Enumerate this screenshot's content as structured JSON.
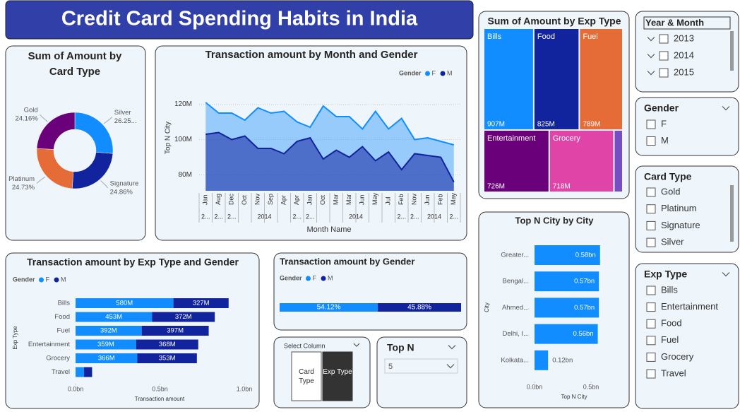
{
  "title": "Credit Card Spending Habits in India",
  "chart_data": [
    {
      "type": "donut",
      "title": "Sum of Amount by Card Type",
      "categories": [
        "Silver",
        "Signature",
        "Platinum",
        "Gold"
      ],
      "values": [
        26.25,
        24.86,
        24.73,
        24.16
      ],
      "value_labels": [
        "26.25...",
        "24.86%",
        "24.73%",
        "24.16%"
      ],
      "colors": [
        "#118dff",
        "#12239e",
        "#e66c37",
        "#6b007b"
      ]
    },
    {
      "type": "area",
      "title": "Transaction amount by Month and Gender",
      "legend_title": "Gender",
      "y_label": "Top N City",
      "x_label": "Month Name",
      "categories": [
        "Jan",
        "Aug",
        "Dec",
        "Oct",
        "Nov",
        "Sep",
        "Apr",
        "Apr",
        "Jan",
        "Oct",
        "Mar",
        "Mar",
        "Jun",
        "May",
        "Jul",
        "Feb",
        "Nov",
        "Jun",
        "Feb",
        "May"
      ],
      "years": [
        "2...",
        "2...",
        "2...",
        "2014",
        null,
        null,
        null,
        "2...",
        "2...",
        "2014",
        null,
        null,
        null,
        null,
        null,
        "2...",
        "2...",
        "2014",
        null,
        "2..."
      ],
      "series": [
        {
          "name": "F",
          "color": "#118dff",
          "values": [
            121000000,
            115000000,
            115000000,
            111000000,
            118000000,
            115000000,
            116000000,
            110000000,
            107000000,
            119000000,
            113000000,
            113000000,
            106000000,
            116000000,
            106000000,
            112000000,
            100000000,
            101000000,
            99000000,
            97000000
          ]
        },
        {
          "name": "M",
          "color": "#12239e",
          "values": [
            103000000,
            104000000,
            100000000,
            102000000,
            95000000,
            95000000,
            92000000,
            99000000,
            101000000,
            89000000,
            94000000,
            90000000,
            96000000,
            88000000,
            93000000,
            83000000,
            92000000,
            91000000,
            90000000,
            76000000
          ]
        }
      ],
      "ylim": [
        71000000,
        125000000
      ],
      "yticks": [
        {
          "value": 80000000,
          "label": "80M"
        },
        {
          "value": 100000000,
          "label": "100M"
        },
        {
          "value": 120000000,
          "label": "120M"
        }
      ],
      "grid": true,
      "legend": "top-right"
    },
    {
      "type": "bar",
      "title": "Transaction amount by Exp Type and Gender",
      "legend_title": "Gender",
      "x_label": "Transaction amount",
      "y_label": "Exp Type",
      "categories": [
        "Bills",
        "Food",
        "Fuel",
        "Entertainment",
        "Grocery",
        "Travel"
      ],
      "series": [
        {
          "name": "F",
          "color": "#118dff",
          "values": [
            580000000,
            453000000,
            392000000,
            359000000,
            366000000,
            50000000
          ],
          "value_labels": [
            "580M",
            "453M",
            "392M",
            "359M",
            "366M",
            null
          ]
        },
        {
          "name": "M",
          "color": "#12239e",
          "values": [
            327000000,
            372000000,
            397000000,
            368000000,
            353000000,
            48000000
          ],
          "value_labels": [
            "327M",
            "372M",
            "397M",
            "368M",
            "353M",
            null
          ]
        }
      ],
      "xlim": [
        0,
        1000000000
      ],
      "xticks": [
        {
          "value": 0,
          "label": "0.0bn"
        },
        {
          "value": 500000000,
          "label": "0.5bn"
        },
        {
          "value": 1000000000,
          "label": "1.0bn"
        }
      ],
      "legend": "top-left"
    },
    {
      "type": "bar",
      "title": "Transaction amount by Gender",
      "legend_title": "Gender",
      "series": [
        {
          "name": "F",
          "color": "#118dff",
          "values": [
            54.12
          ],
          "value_labels": [
            "54.12%"
          ]
        },
        {
          "name": "M",
          "color": "#12239e",
          "values": [
            45.88
          ],
          "value_labels": [
            "45.88%"
          ]
        }
      ],
      "legend": "top-left"
    },
    {
      "type": "treemap",
      "title": "Sum of Amount by Exp Type",
      "categories": [
        "Bills",
        "Food",
        "Fuel",
        "Entertainment",
        "Grocery",
        null
      ],
      "values": [
        907000000,
        825000000,
        789000000,
        726000000,
        718000000,
        98000000
      ],
      "value_labels": [
        "907M",
        "825M",
        "789M",
        "726M",
        "718M",
        null
      ],
      "colors": [
        "#118dff",
        "#12239e",
        "#e66c37",
        "#6b007b",
        "#e044a7",
        "#744ec2"
      ]
    },
    {
      "type": "bar",
      "title": "Top N City by City",
      "x_label": "Top N City",
      "y_label": "City",
      "categories": [
        "Greater...",
        "Bengal...",
        "Ahmed...",
        "Delhi, I...",
        "Kolkata..."
      ],
      "values": [
        580000000,
        570000000,
        570000000,
        560000000,
        120000000
      ],
      "value_labels": [
        "0.58bn",
        "0.57bn",
        "0.57bn",
        "0.56bn",
        "0.12bn"
      ],
      "color": "#118dff",
      "xlim": [
        0,
        500000000
      ],
      "xticks": [
        {
          "value": 0,
          "label": "0.0bn"
        },
        {
          "value": 500000000,
          "label": "0.5bn"
        }
      ]
    }
  ],
  "slicers": {
    "year_month": {
      "title": "Year & Month",
      "items": [
        "2013",
        "2014",
        "2015"
      ]
    },
    "gender": {
      "title": "Gender",
      "items": [
        "F",
        "M"
      ]
    },
    "card_type": {
      "title": "Card Type",
      "items": [
        "Gold",
        "Platinum",
        "Signature",
        "Silver"
      ]
    },
    "exp_type": {
      "title": "Exp Type",
      "items": [
        "Bills",
        "Entertainment",
        "Food",
        "Fuel",
        "Grocery",
        "Travel"
      ]
    },
    "select_column": {
      "title": "Select Column",
      "items": [
        "Card Type",
        "Exp Type"
      ]
    },
    "top_n": {
      "title": "Top N",
      "value": 5
    }
  }
}
